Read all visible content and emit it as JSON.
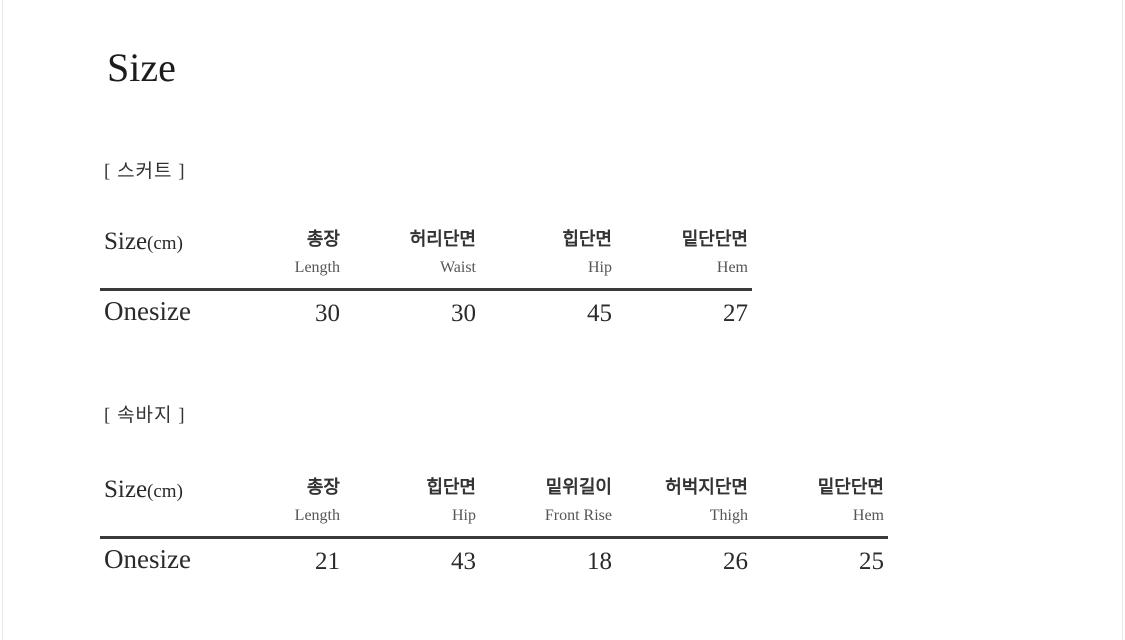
{
  "title": "Size",
  "tables": [
    {
      "section": "[ 스커트 ]",
      "size_label": "Size",
      "unit": "(cm)",
      "columns": [
        {
          "ko": "총장",
          "en": "Length"
        },
        {
          "ko": "허리단면",
          "en": "Waist"
        },
        {
          "ko": "힙단면",
          "en": "Hip"
        },
        {
          "ko": "밑단단면",
          "en": "Hem"
        }
      ],
      "row_label": "Onesize",
      "values": [
        "30",
        "30",
        "45",
        "27"
      ]
    },
    {
      "section": "[ 속바지 ]",
      "size_label": "Size",
      "unit": "(cm)",
      "columns": [
        {
          "ko": "총장",
          "en": "Length"
        },
        {
          "ko": "힙단면",
          "en": "Hip"
        },
        {
          "ko": "밑위길이",
          "en": "Front Rise"
        },
        {
          "ko": "허벅지단면",
          "en": "Thigh"
        },
        {
          "ko": "밑단단면",
          "en": "Hem"
        }
      ],
      "row_label": "Onesize",
      "values": [
        "21",
        "43",
        "18",
        "26",
        "25"
      ]
    }
  ]
}
